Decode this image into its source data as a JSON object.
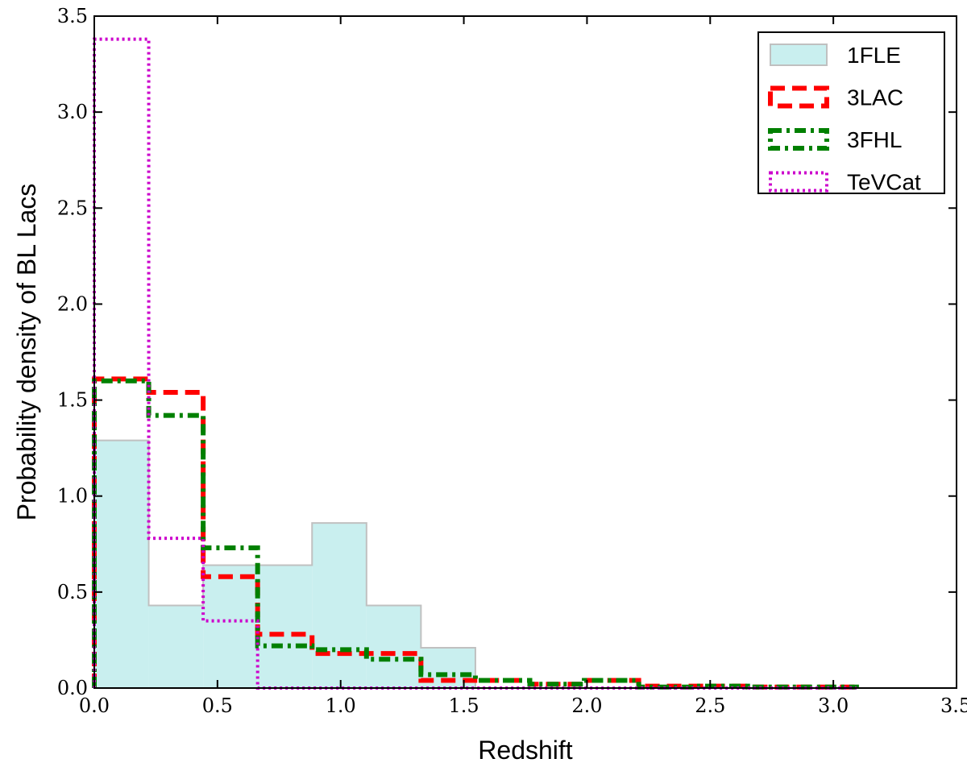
{
  "chart_data": {
    "type": "histogram",
    "title": "",
    "xlabel": "Redshift",
    "ylabel": "Probability density of BL Lacs",
    "xlim": [
      0.0,
      3.5
    ],
    "ylim": [
      0.0,
      3.5
    ],
    "xticks": [
      0.0,
      0.5,
      1.0,
      1.5,
      2.0,
      2.5,
      3.0,
      3.5
    ],
    "xtick_labels": [
      "0.0",
      "0.5",
      "1.0",
      "1.5",
      "2.0",
      "2.5",
      "3.0",
      "3.5"
    ],
    "yticks": [
      0.0,
      0.5,
      1.0,
      1.5,
      2.0,
      2.5,
      3.0,
      3.5
    ],
    "ytick_labels": [
      "0.0",
      "0.5",
      "1.0",
      "1.5",
      "2.0",
      "2.5",
      "3.0",
      "3.5"
    ],
    "grid": false,
    "legend_position": "top-right",
    "bin_edges": [
      0.0,
      0.221,
      0.442,
      0.663,
      0.884,
      1.105,
      1.326,
      1.547,
      1.768,
      1.989,
      2.21,
      2.431,
      2.652,
      2.873,
      3.094
    ],
    "series": [
      {
        "name": "1FLE",
        "style": "filled",
        "color": "#c9efef",
        "edge_color": "#c0c0c0",
        "values": [
          1.29,
          0.43,
          0.64,
          0.64,
          0.86,
          0.43,
          0.21,
          0.0,
          0.0,
          0.0,
          0.0,
          0.0,
          0.0,
          0.0
        ]
      },
      {
        "name": "3LAC",
        "style": "dashed",
        "color": "#ff0000",
        "values": [
          1.61,
          1.54,
          0.58,
          0.28,
          0.18,
          0.18,
          0.04,
          0.04,
          0.02,
          0.04,
          0.01,
          0.01,
          0.005,
          0.005
        ]
      },
      {
        "name": "3FHL",
        "style": "dash-dot",
        "color": "#008000",
        "values": [
          1.6,
          1.42,
          0.73,
          0.22,
          0.2,
          0.15,
          0.07,
          0.04,
          0.02,
          0.04,
          0.005,
          0.01,
          0.005,
          0.005
        ]
      },
      {
        "name": "TeVCat",
        "style": "dotted",
        "color": "#cc00cc",
        "values": [
          3.38,
          0.78,
          0.35,
          0.0,
          0.0,
          0.0,
          0.0,
          0.0,
          0.0,
          0.0,
          0.0,
          0.0,
          0.0,
          0.0
        ]
      }
    ]
  }
}
